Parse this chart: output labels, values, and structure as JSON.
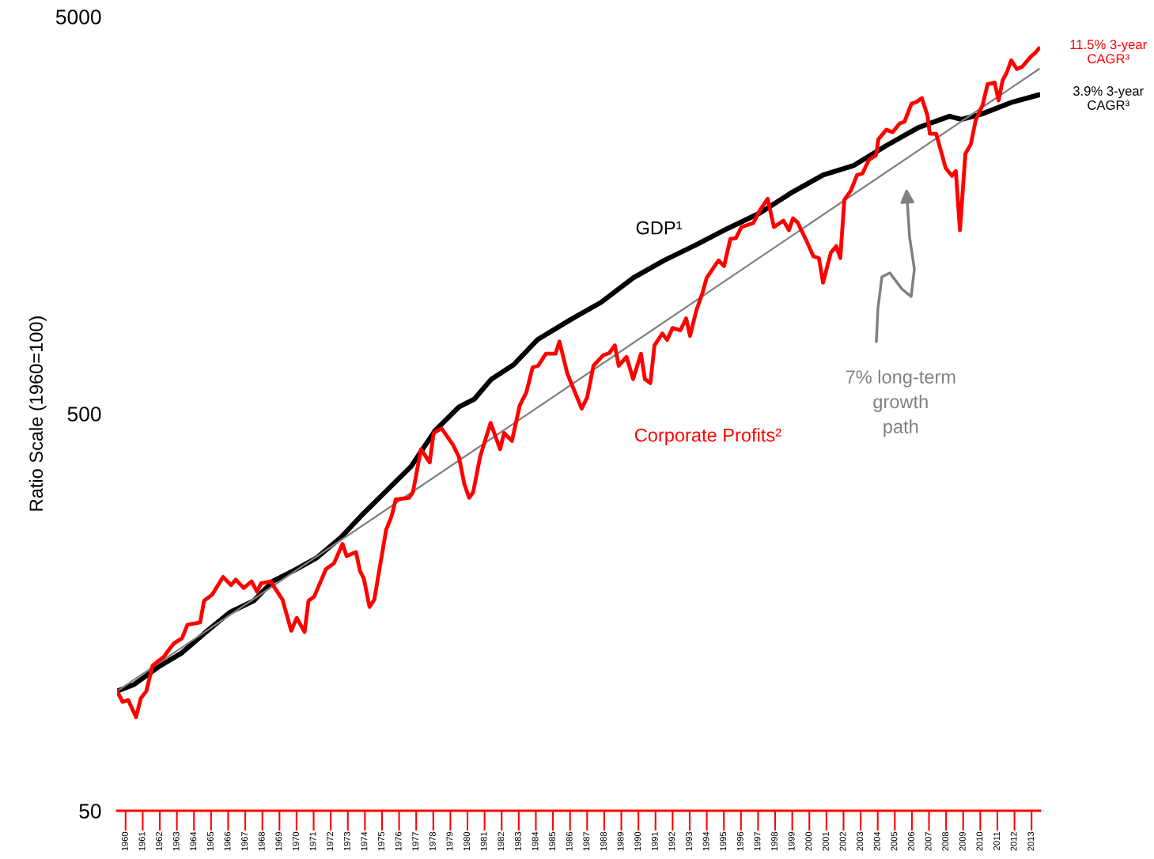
{
  "chart_data": {
    "type": "line",
    "ylabel": "Ratio Scale (1960=100)",
    "log": true,
    "ylim": [
      50,
      5000
    ],
    "yticks": [
      50,
      500,
      5000
    ],
    "xlim": [
      1960,
      2014
    ],
    "xticks": [
      {
        "value": 1960.5,
        "label": "1960"
      },
      {
        "value": 1961.5,
        "label": "1961"
      },
      {
        "value": 1962.5,
        "label": "1962"
      },
      {
        "value": 1963.5,
        "label": "1963"
      },
      {
        "value": 1964.5,
        "label": "1964"
      },
      {
        "value": 1965.5,
        "label": "1965"
      },
      {
        "value": 1966.5,
        "label": "1966"
      },
      {
        "value": 1967.5,
        "label": "1967"
      },
      {
        "value": 1968.5,
        "label": "1968"
      },
      {
        "value": 1969.5,
        "label": "1969"
      },
      {
        "value": 1970.5,
        "label": "1970"
      },
      {
        "value": 1971.5,
        "label": "1971"
      },
      {
        "value": 1972.5,
        "label": "1972"
      },
      {
        "value": 1973.5,
        "label": "1973"
      },
      {
        "value": 1974.5,
        "label": "1974"
      },
      {
        "value": 1975.5,
        "label": "1975"
      },
      {
        "value": 1976.5,
        "label": "1976"
      },
      {
        "value": 1977.5,
        "label": "1977"
      },
      {
        "value": 1978.5,
        "label": "1978"
      },
      {
        "value": 1979.5,
        "label": "1979"
      },
      {
        "value": 1980.5,
        "label": "1980"
      },
      {
        "value": 1981.5,
        "label": "1981"
      },
      {
        "value": 1982.5,
        "label": "1982"
      },
      {
        "value": 1983.5,
        "label": "1983"
      },
      {
        "value": 1984.5,
        "label": "1984"
      },
      {
        "value": 1985.5,
        "label": "1985"
      },
      {
        "value": 1986.5,
        "label": "1986"
      },
      {
        "value": 1987.5,
        "label": "1987"
      },
      {
        "value": 1988.5,
        "label": "1988"
      },
      {
        "value": 1989.5,
        "label": "1989"
      },
      {
        "value": 1990.5,
        "label": "1990"
      },
      {
        "value": 1991.5,
        "label": "1991"
      },
      {
        "value": 1992.5,
        "label": "1992"
      },
      {
        "value": 1993.5,
        "label": "1993"
      },
      {
        "value": 1994.5,
        "label": "1994"
      },
      {
        "value": 1995.5,
        "label": "1995"
      },
      {
        "value": 1996.5,
        "label": "1996"
      },
      {
        "value": 1997.5,
        "label": "1997"
      },
      {
        "value": 1998.5,
        "label": "1998"
      },
      {
        "value": 1999.5,
        "label": "1999"
      },
      {
        "value": 2000.5,
        "label": "2000"
      },
      {
        "value": 2001.5,
        "label": "2001"
      },
      {
        "value": 2002.5,
        "label": "2002"
      },
      {
        "value": 2003.5,
        "label": "2003"
      },
      {
        "value": 2004.5,
        "label": "2004"
      },
      {
        "value": 2005.5,
        "label": "2005"
      },
      {
        "value": 2006.5,
        "label": "2006"
      },
      {
        "value": 2007.5,
        "label": "2007"
      },
      {
        "value": 2008.5,
        "label": "2008"
      },
      {
        "value": 2009.5,
        "label": "2009"
      },
      {
        "value": 2010.5,
        "label": "2010"
      },
      {
        "value": 2011.5,
        "label": "2011"
      },
      {
        "value": 2012.5,
        "label": "2012"
      },
      {
        "value": 2013.5,
        "label": "2013"
      }
    ],
    "series": [
      {
        "name": "GDP¹",
        "color": "#000000",
        "x": [
          1960.0,
          1961.0,
          1962.4,
          1963.8,
          1965.2,
          1966.6,
          1968.0,
          1969.1,
          1970.5,
          1971.7,
          1973.1,
          1974.4,
          1975.8,
          1977.2,
          1978.6,
          1980.0,
          1980.9,
          1981.9,
          1983.2,
          1984.6,
          1986.5,
          1988.3,
          1990.2,
          1992.0,
          1993.9,
          1995.7,
          1997.6,
          1999.4,
          2001.3,
          2003.1,
          2005.0,
          2006.9,
          2008.7,
          2009.4,
          2010.6,
          2012.4,
          2013.94
        ],
        "values": [
          100,
          104,
          115,
          125,
          141,
          158,
          169,
          189,
          203,
          217,
          244,
          280,
          321,
          368,
          453,
          520,
          544,
          611,
          664,
          768,
          861,
          953,
          1099,
          1216,
          1333,
          1462,
          1600,
          1795,
          1995,
          2109,
          2366,
          2630,
          2805,
          2754,
          2844,
          3048,
          3177
        ]
      },
      {
        "name": "Corporate Profits²",
        "color": "#ff0000",
        "x": [
          1960.0,
          1960.32,
          1960.65,
          1961.11,
          1961.39,
          1961.71,
          1962.08,
          1962.73,
          1962.96,
          1963.33,
          1963.8,
          1964.12,
          1964.86,
          1965.09,
          1965.56,
          1966.2,
          1966.67,
          1966.94,
          1967.41,
          1967.87,
          1968.19,
          1968.43,
          1968.98,
          1969.68,
          1970.19,
          1970.51,
          1970.97,
          1971.2,
          1971.53,
          1972.22,
          1972.69,
          1973.19,
          1973.43,
          1973.98,
          1974.21,
          1974.44,
          1974.77,
          1975.05,
          1975.74,
          1976.06,
          1976.3,
          1977.08,
          1977.31,
          1977.78,
          1978.29,
          1978.52,
          1978.98,
          1979.63,
          1980.0,
          1980.32,
          1980.6,
          1980.83,
          1981.25,
          1981.85,
          1982.41,
          1982.64,
          1983.1,
          1983.56,
          1983.94,
          1984.31,
          1984.63,
          1985.09,
          1985.65,
          1985.88,
          1986.34,
          1987.18,
          1987.5,
          1987.87,
          1988.43,
          1988.8,
          1989.12,
          1989.35,
          1989.81,
          1990.19,
          1990.65,
          1990.88,
          1991.2,
          1991.44,
          1991.9,
          1992.18,
          1992.5,
          1992.96,
          1993.29,
          1993.52,
          1993.89,
          1994.26,
          1994.49,
          1995.19,
          1995.51,
          1995.88,
          1996.2,
          1996.53,
          1997.22,
          1997.59,
          1998.06,
          1998.43,
          1998.98,
          1999.31,
          1999.54,
          1999.81,
          2000.37,
          2000.74,
          2001.06,
          2001.3,
          2001.76,
          2002.08,
          2002.31,
          2002.55,
          2002.92,
          2003.29,
          2003.61,
          2003.98,
          2004.4,
          2004.54,
          2005.0,
          2005.37,
          2005.79,
          2006.06,
          2006.48,
          2006.76,
          2007.08,
          2007.41,
          2007.55,
          2007.92,
          2008.47,
          2008.84,
          2009.07,
          2009.31,
          2009.63,
          2009.95,
          2010.23,
          2010.65,
          2010.93,
          2011.34,
          2011.57,
          2011.81,
          2012.04,
          2012.31,
          2012.64,
          2012.96,
          2013.43,
          2013.7,
          2013.94
        ],
        "values": [
          100,
          94,
          95,
          86,
          96,
          100,
          116,
          122,
          126,
          132,
          136,
          147,
          149,
          169,
          175,
          194,
          185,
          191,
          182,
          189,
          178,
          187,
          189,
          170,
          142,
          153,
          141,
          169,
          173,
          203,
          210,
          235,
          219,
          224,
          201,
          192,
          163,
          170,
          255,
          276,
          304,
          307,
          317,
          407,
          377,
          447,
          459,
          419,
          389,
          332,
          307,
          317,
          391,
          474,
          407,
          447,
          427,
          525,
          565,
          654,
          660,
          708,
          708,
          760,
          631,
          515,
          549,
          660,
          701,
          711,
          743,
          660,
          695,
          611,
          708,
          611,
          597,
          743,
          796,
          767,
          822,
          811,
          869,
          785,
          910,
          1011,
          1099,
          1216,
          1177,
          1377,
          1383,
          1476,
          1510,
          1622,
          1738,
          1476,
          1531,
          1449,
          1552,
          1517,
          1352,
          1244,
          1233,
          1069,
          1273,
          1321,
          1233,
          1730,
          1820,
          1995,
          2014,
          2178,
          2238,
          2454,
          2594,
          2558,
          2691,
          2716,
          3019,
          3047,
          3118,
          2818,
          2535,
          2535,
          2080,
          1986,
          2042,
          1449,
          2259,
          2388,
          2742,
          3006,
          3381,
          3412,
          3076,
          3459,
          3606,
          3881,
          3690,
          3741,
          3954,
          4046,
          4159
        ]
      },
      {
        "name": "7% long-term\ngrowth\npath",
        "color": "#808080",
        "x": [
          1960.0,
          2013.94
        ],
        "values": [
          100,
          3690
        ]
      }
    ],
    "annotations": [
      {
        "text": "11.5% 3-year\nCAGR³",
        "x": 2013.94,
        "y": 4159
      },
      {
        "text": "3.9% 3-year\nCAGR³",
        "x": 2013.94,
        "y": 3177
      }
    ]
  }
}
